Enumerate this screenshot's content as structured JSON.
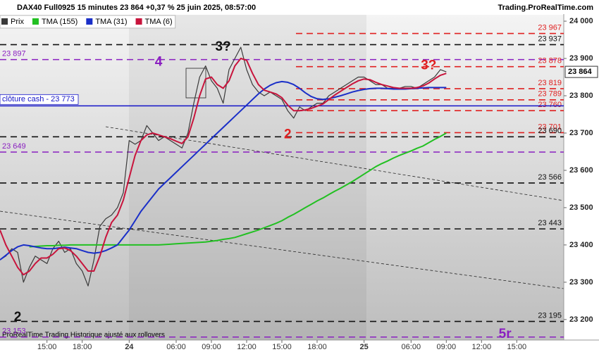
{
  "chart_data": {
    "type": "line",
    "title": "DAX40 Full0925 15 minutes 23 864 +0,37 % 25 juin 2025, 08:57:00",
    "source": "Trading.ProRealTime.com",
    "footer": "ProRealTime Trading  Historique ajusté aux rollovers",
    "categories": [
      null,
      null,
      null,
      null,
      null,
      null,
      null,
      null,
      "15:00",
      null,
      null,
      null,
      null,
      null,
      "18:00",
      null,
      null,
      null,
      null,
      null,
      null,
      null,
      "24",
      null,
      null,
      null,
      null,
      null,
      null,
      null,
      "06:00",
      null,
      null,
      null,
      null,
      null,
      "09:00",
      null,
      null,
      null,
      null,
      null,
      "12:00",
      null,
      null,
      null,
      null,
      null,
      "15:00",
      null,
      null,
      null,
      null,
      null,
      "18:00",
      null,
      null,
      null,
      null,
      null,
      null,
      null,
      "25",
      null,
      null,
      null,
      null,
      null,
      null,
      null,
      "06:00",
      null,
      null,
      null,
      null,
      null,
      "09:00",
      null,
      null,
      null,
      null,
      null,
      "12:00",
      null,
      null,
      null,
      null,
      null,
      "15:00"
    ],
    "series": [
      {
        "name": "Prix",
        "color": "#3a3a3a",
        "values": [
          23360,
          23370,
          23390,
          23380,
          23300,
          23340,
          23370,
          23360,
          23350,
          23390,
          23410,
          23380,
          23390,
          23350,
          23330,
          23290,
          23360,
          23450,
          23470,
          23480,
          23500,
          23540,
          23680,
          23670,
          23680,
          23720,
          23700,
          23680,
          23690,
          23680,
          23670,
          23660,
          23700,
          23780,
          23850,
          23880,
          23840,
          23820,
          23780,
          23870,
          23900,
          23930,
          23870,
          23830,
          23810,
          23800,
          23810,
          23800,
          23790,
          23760,
          23740,
          23770,
          23760,
          23770,
          23780,
          23780,
          23800,
          23810,
          23820,
          23830,
          23840,
          23850,
          23850,
          23840,
          23830,
          23830,
          23820,
          23820,
          23820,
          23825,
          23825,
          23820,
          23830,
          23840,
          23850,
          23870,
          23864,
          null,
          null,
          null,
          null,
          null,
          null,
          null,
          null,
          null,
          null,
          null,
          null
        ]
      },
      {
        "name": "TMA (155)",
        "color": "#22c022",
        "values": [
          null,
          null,
          null,
          null,
          null,
          23395,
          23396,
          23397,
          23398,
          23398,
          23399,
          23399,
          23400,
          23400,
          23400,
          23400,
          23400,
          23400,
          23400,
          23400,
          23400,
          23400,
          23400,
          23400,
          23400,
          23400,
          23400,
          23400,
          23401,
          23402,
          23403,
          23404,
          23405,
          23406,
          23407,
          23408,
          23410,
          23412,
          23415,
          23417,
          23420,
          23425,
          23430,
          23435,
          23440,
          23446,
          23452,
          23458,
          23465,
          23474,
          23482,
          23491,
          23500,
          23509,
          23518,
          23526,
          23535,
          23544,
          23552,
          23561,
          23570,
          23580,
          23590,
          23600,
          23610,
          23618,
          23625,
          23633,
          23640,
          23646,
          23652,
          23659,
          23665,
          23674,
          23683,
          23691,
          23700,
          null,
          null,
          null,
          null,
          null,
          null,
          null,
          null,
          null,
          null,
          null,
          null
        ]
      },
      {
        "name": "TMA (31)",
        "color": "#1a2fc8",
        "values": [
          23360,
          23372,
          23385,
          23395,
          23400,
          23398,
          23395,
          23392,
          23390,
          23390,
          23392,
          23394,
          23392,
          23390,
          23385,
          23380,
          23378,
          23380,
          23385,
          23392,
          23400,
          23420,
          23440,
          23465,
          23490,
          23510,
          23530,
          23550,
          23565,
          23580,
          23595,
          23610,
          23625,
          23640,
          23655,
          23670,
          23685,
          23700,
          23715,
          23730,
          23745,
          23760,
          23775,
          23790,
          23805,
          23818,
          23828,
          23835,
          23838,
          23836,
          23830,
          23820,
          23808,
          23798,
          23792,
          23790,
          23792,
          23796,
          23800,
          23805,
          23810,
          23814,
          23817,
          23819,
          23820,
          23820,
          23819,
          23818,
          23818,
          23818,
          23819,
          23820,
          23821,
          23822,
          23822,
          23822,
          23822,
          null,
          null,
          null,
          null,
          null,
          null,
          null,
          null,
          null,
          null,
          null,
          null
        ]
      },
      {
        "name": "TMA (6)",
        "color": "#c8143c",
        "values": [
          23440,
          23400,
          23370,
          23340,
          23320,
          23330,
          23350,
          23365,
          23365,
          23375,
          23390,
          23392,
          23385,
          23370,
          23350,
          23330,
          23330,
          23370,
          23420,
          23460,
          23480,
          23520,
          23580,
          23640,
          23680,
          23695,
          23700,
          23695,
          23690,
          23685,
          23678,
          23672,
          23690,
          23740,
          23800,
          23845,
          23850,
          23830,
          23820,
          23840,
          23880,
          23900,
          23895,
          23860,
          23830,
          23815,
          23810,
          23805,
          23795,
          23775,
          23760,
          23760,
          23762,
          23766,
          23772,
          23778,
          23790,
          23802,
          23812,
          23822,
          23832,
          23840,
          23845,
          23843,
          23836,
          23830,
          23826,
          23822,
          23820,
          23820,
          23820,
          23822,
          23826,
          23834,
          23845,
          23855,
          23860,
          null,
          null,
          null,
          null,
          null,
          null,
          null,
          null,
          null,
          null,
          null,
          null
        ]
      }
    ],
    "ylim": [
      23145,
      24019
    ],
    "yticks": [
      {
        "value": 24000,
        "label": "24 000"
      },
      {
        "value": 23900,
        "label": "23 900"
      },
      {
        "value": 23800,
        "label": "23 800"
      },
      {
        "value": 23700,
        "label": "23 700"
      },
      {
        "value": 23600,
        "label": "23 600"
      },
      {
        "value": 23500,
        "label": "23 500"
      },
      {
        "value": 23400,
        "label": "23 400"
      },
      {
        "value": 23300,
        "label": "23 300"
      },
      {
        "value": 23200,
        "label": "23 200"
      }
    ],
    "levels": [
      {
        "value": 23967,
        "label": "23 967",
        "color": "#e02020"
      },
      {
        "value": 23937,
        "label": "23 937",
        "color": "#111111"
      },
      {
        "value": 23897,
        "label": "23 897",
        "color": "#8a1fc0"
      },
      {
        "value": 23878,
        "label": "23 878",
        "color": "#e02020"
      },
      {
        "value": 23819,
        "label": "23 819",
        "color": "#e02020"
      },
      {
        "value": 23789,
        "label": "23 789",
        "color": "#e02020"
      },
      {
        "value": 23760,
        "label": "23 760",
        "color": "#e02020"
      },
      {
        "value": 23701,
        "label": "23 701",
        "color": "#e02020"
      },
      {
        "value": 23690,
        "label": "23 690",
        "color": "#111111"
      },
      {
        "value": 23649,
        "label": "23 649",
        "color": "#8a1fc0"
      },
      {
        "value": 23566,
        "label": "23 566",
        "color": "#111111"
      },
      {
        "value": 23443,
        "label": "23 443",
        "color": "#111111"
      },
      {
        "value": 23195,
        "label": "23 195",
        "color": "#111111"
      },
      {
        "value": 23153,
        "label": "23 153",
        "color": "#8a1fc0"
      }
    ],
    "cash_close": {
      "value": 23773,
      "label": "clôture cash -  23 773",
      "color": "#1414c8"
    },
    "current_price": {
      "value": 23864,
      "label": "23 864"
    },
    "annotations": [
      {
        "text": "3?",
        "x": 38,
        "y": 23930,
        "color": "#111111"
      },
      {
        "text": "4",
        "x": 27,
        "y": 23890,
        "color": "#8a1fc0"
      },
      {
        "text": "2",
        "x": 49,
        "y": 23695,
        "color": "#e02020"
      },
      {
        "text": "3?",
        "x": 73,
        "y": 23880,
        "color": "#e02020"
      },
      {
        "text": "2",
        "x": 3,
        "y": 23205,
        "color": "#111111"
      },
      {
        "text": "5r",
        "x": 86,
        "y": 23160,
        "color": "#8a1fc0"
      }
    ]
  }
}
